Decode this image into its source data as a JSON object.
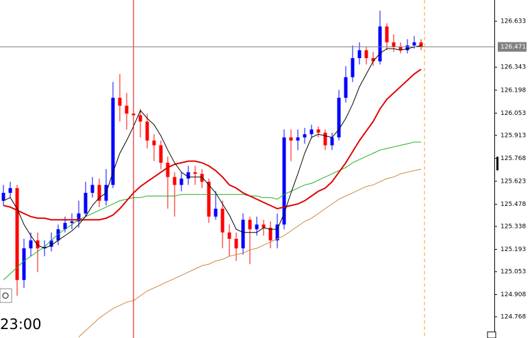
{
  "chart_data": {
    "type": "candlestick",
    "up_color": "#0000ff",
    "down_color": "#ff0000",
    "time_label": "23:00",
    "current_price": 126.471,
    "current_price_color": "#808080",
    "ylim": [
      124.634,
      126.767
    ],
    "yticks": [
      126.633,
      126.343,
      126.198,
      126.053,
      125.913,
      125.768,
      125.623,
      125.478,
      125.338,
      125.193,
      125.053,
      124.908,
      124.768
    ],
    "open": [
      125.5,
      125.55,
      125.58,
      125.0,
      125.2,
      125.25,
      125.2,
      125.21,
      125.25,
      125.32,
      125.36,
      125.37,
      125.42,
      125.55,
      125.6,
      125.5,
      125.6,
      126.15,
      126.1,
      126.05,
      126.04,
      126.0,
      125.88,
      125.85,
      125.74,
      125.65,
      125.6,
      125.64,
      125.68,
      125.67,
      125.62,
      125.4,
      125.45,
      125.3,
      125.26,
      125.2,
      125.38,
      125.32,
      125.35,
      125.33,
      125.25,
      125.35,
      125.9,
      125.88,
      125.9,
      125.92,
      125.95,
      125.93,
      125.85,
      125.9,
      126.15,
      126.28,
      126.4,
      126.45,
      126.4,
      126.38,
      126.6,
      126.5,
      126.47,
      126.45,
      126.48,
      126.5
    ],
    "high": [
      125.6,
      125.62,
      125.6,
      125.26,
      125.3,
      125.3,
      125.25,
      125.3,
      125.35,
      125.4,
      125.42,
      125.5,
      125.62,
      125.65,
      125.64,
      125.7,
      126.25,
      126.3,
      126.18,
      126.1,
      126.08,
      126.05,
      125.92,
      125.88,
      125.78,
      125.68,
      125.68,
      125.72,
      125.72,
      125.7,
      125.64,
      125.56,
      125.5,
      125.35,
      125.3,
      125.42,
      125.4,
      125.4,
      125.38,
      125.37,
      125.42,
      125.95,
      125.95,
      125.95,
      125.96,
      125.98,
      125.97,
      125.95,
      125.93,
      126.2,
      126.35,
      126.48,
      126.5,
      126.47,
      126.44,
      126.7,
      126.62,
      126.55,
      126.5,
      126.52,
      126.54,
      126.52
    ],
    "low": [
      125.47,
      125.52,
      124.9,
      124.95,
      125.15,
      125.05,
      125.15,
      125.18,
      125.22,
      125.3,
      125.32,
      125.33,
      125.4,
      125.52,
      125.46,
      125.47,
      125.58,
      126.0,
      125.95,
      125.98,
      125.9,
      125.83,
      125.75,
      125.7,
      125.45,
      125.4,
      125.56,
      125.6,
      125.6,
      125.58,
      125.36,
      125.38,
      125.2,
      125.15,
      125.12,
      125.16,
      125.1,
      125.28,
      125.28,
      125.2,
      125.2,
      125.32,
      125.75,
      125.82,
      125.86,
      125.9,
      125.9,
      125.82,
      125.82,
      125.88,
      126.12,
      126.25,
      126.36,
      126.36,
      126.35,
      126.36,
      126.45,
      126.44,
      126.43,
      126.43,
      126.46,
      126.45
    ],
    "close": [
      125.55,
      125.58,
      125.0,
      125.2,
      125.25,
      125.2,
      125.21,
      125.25,
      125.32,
      125.36,
      125.37,
      125.42,
      125.55,
      125.6,
      125.5,
      125.6,
      126.15,
      126.1,
      126.05,
      126.04,
      126.0,
      125.88,
      125.85,
      125.74,
      125.65,
      125.6,
      125.64,
      125.68,
      125.67,
      125.62,
      125.4,
      125.45,
      125.3,
      125.26,
      125.2,
      125.38,
      125.32,
      125.35,
      125.33,
      125.25,
      125.35,
      125.9,
      125.88,
      125.9,
      125.92,
      125.95,
      125.93,
      125.85,
      125.9,
      126.15,
      126.28,
      126.4,
      126.45,
      126.4,
      126.38,
      126.6,
      126.5,
      126.47,
      126.45,
      126.48,
      126.5,
      126.47
    ],
    "series": [
      {
        "color": "#cd853f",
        "width": 1,
        "values": [
          null,
          null,
          null,
          null,
          null,
          null,
          null,
          null,
          null,
          null,
          null,
          124.64,
          124.68,
          124.72,
          124.76,
          124.79,
          124.82,
          124.84,
          124.86,
          124.87,
          124.9,
          124.93,
          124.95,
          124.97,
          124.99,
          125.01,
          125.03,
          125.05,
          125.07,
          125.09,
          125.1,
          125.12,
          125.13,
          125.15,
          125.16,
          125.17,
          125.19,
          125.2,
          125.22,
          125.24,
          125.26,
          125.28,
          125.31,
          125.34,
          125.37,
          125.39,
          125.42,
          125.45,
          125.48,
          125.51,
          125.53,
          125.55,
          125.57,
          125.59,
          125.6,
          125.62,
          125.64,
          125.65,
          125.67,
          125.68,
          125.69,
          125.7
        ]
      },
      {
        "color": "#22aa22",
        "width": 1,
        "values": [
          125.0,
          125.04,
          125.08,
          125.12,
          125.15,
          125.18,
          125.21,
          125.25,
          125.29,
          125.32,
          125.35,
          125.38,
          125.4,
          125.42,
          125.44,
          125.46,
          125.48,
          125.5,
          125.51,
          125.52,
          125.52,
          125.53,
          125.53,
          125.53,
          125.53,
          125.53,
          125.54,
          125.54,
          125.54,
          125.54,
          125.54,
          125.54,
          125.54,
          125.54,
          125.54,
          125.54,
          125.53,
          125.53,
          125.52,
          125.52,
          125.51,
          125.54,
          125.56,
          125.58,
          125.6,
          125.61,
          125.63,
          125.65,
          125.67,
          125.69,
          125.71,
          125.74,
          125.76,
          125.78,
          125.8,
          125.82,
          125.83,
          125.84,
          125.85,
          125.86,
          125.87,
          125.87
        ]
      },
      {
        "color": "#e00000",
        "width": 2,
        "values": [
          125.47,
          125.46,
          125.44,
          125.42,
          125.4,
          125.39,
          125.39,
          125.38,
          125.38,
          125.38,
          125.38,
          125.38,
          125.38,
          125.38,
          125.38,
          125.39,
          125.41,
          125.45,
          125.5,
          125.55,
          125.59,
          125.62,
          125.65,
          125.68,
          125.71,
          125.73,
          125.74,
          125.75,
          125.75,
          125.74,
          125.72,
          125.69,
          125.65,
          125.6,
          125.58,
          125.55,
          125.53,
          125.51,
          125.49,
          125.47,
          125.45,
          125.46,
          125.47,
          125.48,
          125.5,
          125.53,
          125.56,
          125.58,
          125.62,
          125.68,
          125.74,
          125.81,
          125.88,
          125.94,
          126.0,
          126.08,
          126.14,
          126.18,
          126.22,
          126.26,
          126.3,
          126.33
        ]
      },
      {
        "color": "#000000",
        "width": 1,
        "values": [
          125.5,
          125.52,
          125.45,
          125.35,
          125.28,
          125.22,
          125.2,
          125.22,
          125.25,
          125.28,
          125.31,
          125.35,
          125.4,
          125.47,
          125.52,
          125.55,
          125.68,
          125.8,
          125.88,
          125.97,
          126.07,
          126.02,
          125.98,
          125.91,
          125.82,
          125.74,
          125.68,
          125.65,
          125.65,
          125.65,
          125.6,
          125.55,
          125.48,
          125.41,
          125.32,
          125.3,
          125.3,
          125.3,
          125.33,
          125.32,
          125.32,
          125.42,
          125.55,
          125.67,
          125.8,
          125.9,
          125.92,
          125.91,
          125.9,
          125.95,
          126.02,
          126.11,
          126.22,
          126.3,
          126.38,
          126.43,
          126.46,
          126.46,
          126.45,
          126.46,
          126.47,
          126.48
        ]
      }
    ]
  }
}
